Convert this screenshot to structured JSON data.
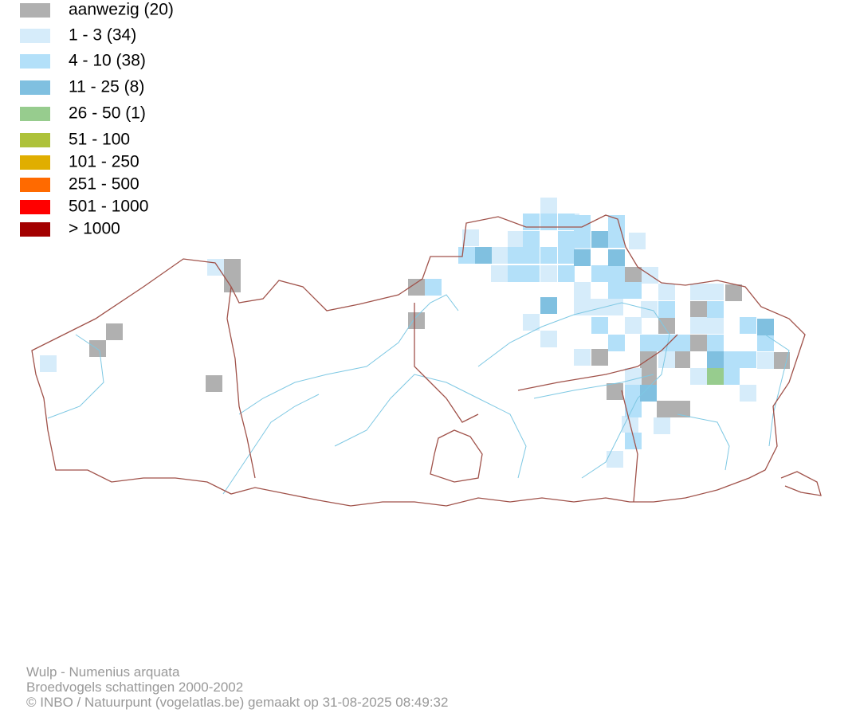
{
  "legend": {
    "items": [
      {
        "label": "aanwezig (20)",
        "color": "#b0b0b0"
      },
      {
        "label": "1 - 3 (34)",
        "color": "#d6ecfa"
      },
      {
        "label": "4 - 10 (38)",
        "color": "#b3e0f9"
      },
      {
        "label": "11 - 25 (8)",
        "color": "#80c0e0"
      },
      {
        "label": "26 - 50 (1)",
        "color": "#97cc8e"
      },
      {
        "label": "51 - 100",
        "color": "#aec23a"
      },
      {
        "label": "101 - 250",
        "color": "#e0ae00"
      },
      {
        "label": "251 - 500",
        "color": "#ff6a00"
      },
      {
        "label": "501 - 1000",
        "color": "#ff0000"
      },
      {
        "label": "> 1000",
        "color": "#a30000"
      }
    ]
  },
  "footer": [
    "Wulp - Numenius arquata",
    "Broedvogels schattingen 2000-2002",
    "© INBO / Natuurpunt (vogelatlas.be) gemaakt op 31-08-2025 08:49:32"
  ]
}
